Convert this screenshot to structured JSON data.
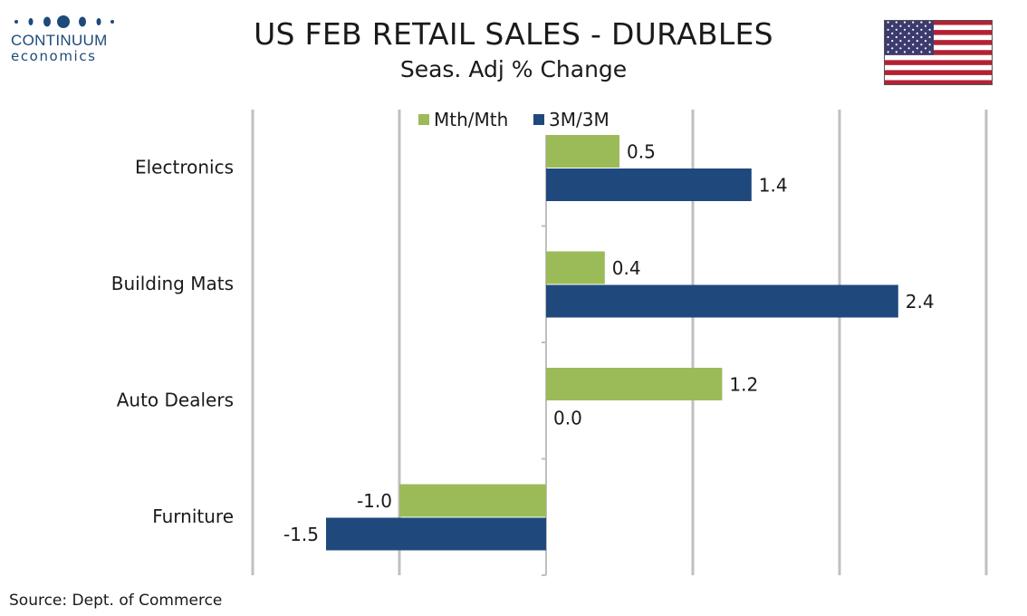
{
  "header": {
    "title": "US FEB RETAIL SALES - DURABLES",
    "subtitle": "Seas. Adj % Change"
  },
  "logo": {
    "name": "CONTINUUM",
    "sub": "economics"
  },
  "flag": {
    "icon": "us-flag-icon"
  },
  "source": "Source: Dept. of Commerce",
  "colors": {
    "mth": "#9bbb59",
    "three_m": "#1f497d",
    "grid": "#c0c0c0",
    "axis": "#bfbfbf"
  },
  "chart_data": {
    "type": "bar",
    "orientation": "horizontal",
    "title": "US FEB RETAIL SALES - DURABLES",
    "subtitle": "Seas. Adj % Change",
    "categories": [
      "Electronics",
      "Building Mats",
      "Auto Dealers",
      "Furniture"
    ],
    "series": [
      {
        "name": "Mth/Mth",
        "values": [
          0.5,
          0.4,
          1.2,
          -1.0
        ],
        "labels": [
          "0.5",
          "0.4",
          "1.2",
          "-1.0"
        ]
      },
      {
        "name": "3M/3M",
        "values": [
          1.4,
          2.4,
          0.0,
          -1.5
        ],
        "labels": [
          "1.4",
          "2.4",
          "0.0",
          "-1.5"
        ]
      }
    ],
    "xlim": [
      -2.0,
      3.0
    ],
    "grid": true,
    "legend": "top-center"
  }
}
